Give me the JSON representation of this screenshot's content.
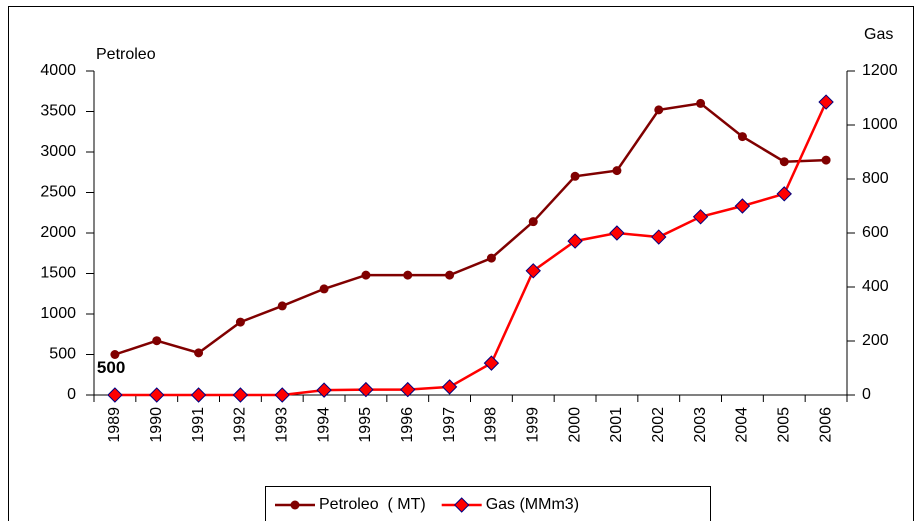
{
  "chart_data": {
    "type": "line",
    "categories": [
      "1989",
      "1990",
      "1991",
      "1992",
      "1993",
      "1994",
      "1995",
      "1996",
      "1997",
      "1998",
      "1999",
      "2000",
      "2001",
      "2002",
      "2003",
      "2004",
      "2005",
      "2006"
    ],
    "y_label": "Petroleo",
    "y2_label": "Gas",
    "ylim": [
      0,
      4000
    ],
    "yticks": [
      0,
      500,
      1000,
      1500,
      2000,
      2500,
      3000,
      3500,
      4000
    ],
    "y2lim": [
      0,
      1200
    ],
    "y2ticks": [
      0,
      200,
      400,
      600,
      800,
      1000,
      1200
    ],
    "annotation": "500",
    "legend": "bottom",
    "series": [
      {
        "name": "Petroleo  ( MT)",
        "color": "#800000",
        "marker": "circle",
        "values": [
          500,
          670,
          520,
          900,
          1100,
          1310,
          1480,
          1480,
          1480,
          1690,
          2140,
          2700,
          2770,
          3520,
          3600,
          3190,
          2880,
          2900
        ]
      },
      {
        "name": "Gas (MMm3)",
        "color": "#ff0000",
        "marker": "diamond",
        "axis": "y2",
        "values": [
          0,
          0,
          0,
          0,
          0,
          18,
          20,
          20,
          30,
          118,
          460,
          570,
          600,
          585,
          660,
          700,
          745,
          1085
        ]
      }
    ]
  }
}
